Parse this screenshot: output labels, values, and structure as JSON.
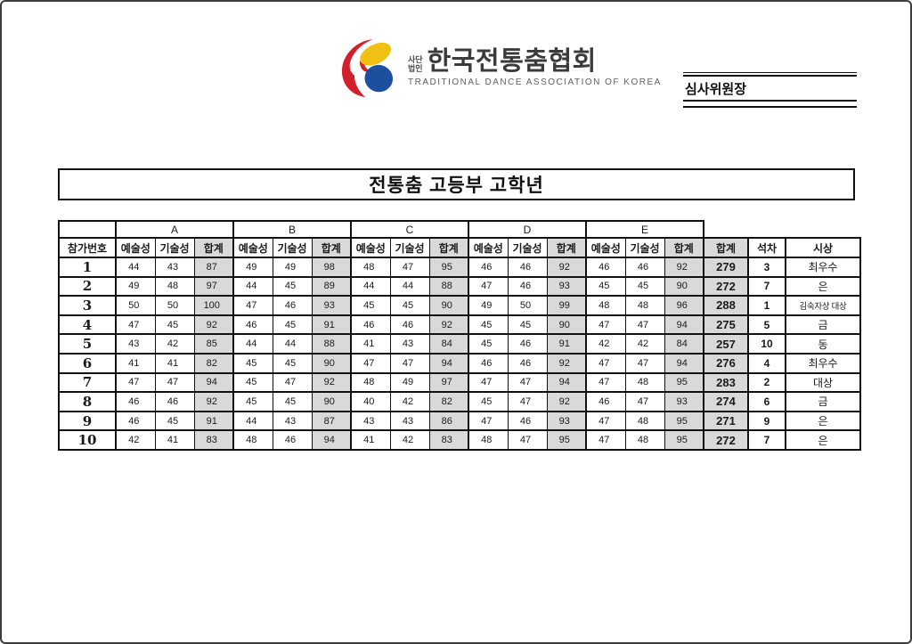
{
  "page": {
    "judge_label": "심사위원장",
    "title": "전통춤 고등부 고학년"
  },
  "logo": {
    "prefix_line1": "사단",
    "prefix_line2": "법인",
    "org_name": "한국전통춤협회",
    "org_name_en": "TRADITIONAL DANCE ASSOCIATION OF KOREA"
  },
  "colors": {
    "accent_red": "#e03a31",
    "cell_gray": "#d9d9d9",
    "logo_red": "#d11f2b",
    "logo_yellow": "#f2c012",
    "logo_blue": "#1d4f9f",
    "table_border": "#111111"
  },
  "table": {
    "participant_header": "참가번호",
    "judges": [
      "A",
      "B",
      "C",
      "D",
      "E"
    ],
    "sub_headers": [
      "예술성",
      "기술성",
      "합계"
    ],
    "total_header": "합계",
    "rank_header": "석차",
    "award_header": "시상",
    "rows": [
      {
        "no": "1",
        "scores": [
          [
            44,
            43,
            87
          ],
          [
            49,
            49,
            98
          ],
          [
            48,
            47,
            95
          ],
          [
            46,
            46,
            92
          ],
          [
            46,
            46,
            92
          ]
        ],
        "total": "279",
        "rank": "3",
        "award": "최우수"
      },
      {
        "no": "2",
        "scores": [
          [
            49,
            48,
            97
          ],
          [
            44,
            45,
            89
          ],
          [
            44,
            44,
            88
          ],
          [
            47,
            46,
            93
          ],
          [
            45,
            45,
            90
          ]
        ],
        "total": "272",
        "rank": "7",
        "award": "은"
      },
      {
        "no": "3",
        "scores": [
          [
            50,
            50,
            100
          ],
          [
            47,
            46,
            93
          ],
          [
            45,
            45,
            90
          ],
          [
            49,
            50,
            99
          ],
          [
            48,
            48,
            96
          ]
        ],
        "total": "288",
        "rank": "1",
        "award": "김숙자상 대상"
      },
      {
        "no": "4",
        "scores": [
          [
            47,
            45,
            92
          ],
          [
            46,
            45,
            91
          ],
          [
            46,
            46,
            92
          ],
          [
            45,
            45,
            90
          ],
          [
            47,
            47,
            94
          ]
        ],
        "total": "275",
        "rank": "5",
        "award": "금"
      },
      {
        "no": "5",
        "scores": [
          [
            43,
            42,
            85
          ],
          [
            44,
            44,
            88
          ],
          [
            41,
            43,
            84
          ],
          [
            45,
            46,
            91
          ],
          [
            42,
            42,
            84
          ]
        ],
        "total": "257",
        "rank": "10",
        "award": "동"
      },
      {
        "no": "6",
        "scores": [
          [
            41,
            41,
            82
          ],
          [
            45,
            45,
            90
          ],
          [
            47,
            47,
            94
          ],
          [
            46,
            46,
            92
          ],
          [
            47,
            47,
            94
          ]
        ],
        "total": "276",
        "rank": "4",
        "award": "최우수"
      },
      {
        "no": "7",
        "scores": [
          [
            47,
            47,
            94
          ],
          [
            45,
            47,
            92
          ],
          [
            48,
            49,
            97
          ],
          [
            47,
            47,
            94
          ],
          [
            47,
            48,
            95
          ]
        ],
        "total": "283",
        "rank": "2",
        "award": "대상"
      },
      {
        "no": "8",
        "scores": [
          [
            46,
            46,
            92
          ],
          [
            45,
            45,
            90
          ],
          [
            40,
            42,
            82
          ],
          [
            45,
            47,
            92
          ],
          [
            46,
            47,
            93
          ]
        ],
        "total": "274",
        "rank": "6",
        "award": "금"
      },
      {
        "no": "9",
        "scores": [
          [
            46,
            45,
            91
          ],
          [
            44,
            43,
            87
          ],
          [
            43,
            43,
            86
          ],
          [
            47,
            46,
            93
          ],
          [
            47,
            48,
            95
          ]
        ],
        "total": "271",
        "rank": "9",
        "award": "은"
      },
      {
        "no": "10",
        "scores": [
          [
            42,
            41,
            83
          ],
          [
            48,
            46,
            94
          ],
          [
            41,
            42,
            83
          ],
          [
            48,
            47,
            95
          ],
          [
            47,
            48,
            95
          ]
        ],
        "total": "272",
        "rank": "7",
        "award": "은"
      }
    ]
  }
}
